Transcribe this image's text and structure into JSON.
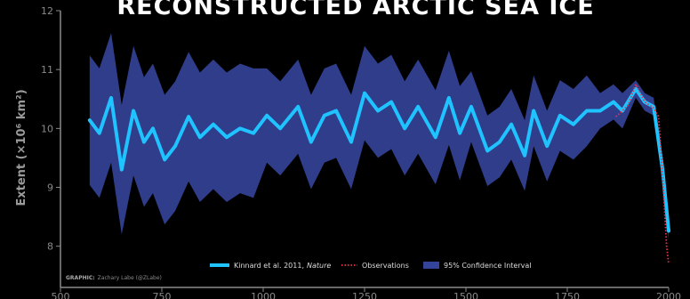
{
  "chart_data": {
    "type": "line",
    "title": "RECONSTRUCTED ARCTIC SEA ICE",
    "y_label": "Extent (×10⁶ km²)",
    "credit_label": "GRAPHIC:",
    "credit": "Zachary Labe (@ZLabe)",
    "x": [
      572,
      596,
      625,
      651,
      680,
      706,
      728,
      757,
      783,
      816,
      844,
      877,
      910,
      943,
      976,
      1009,
      1042,
      1086,
      1118,
      1151,
      1180,
      1217,
      1250,
      1283,
      1316,
      1349,
      1382,
      1425,
      1458,
      1485,
      1513,
      1553,
      1583,
      1612,
      1645,
      1667,
      1700,
      1732,
      1765,
      1798,
      1831,
      1864,
      1886,
      1919,
      1941,
      1963,
      1985,
      2000
    ],
    "series": [
      {
        "name": "Kinnard et al. 2011,",
        "name_emphasis": "Nature",
        "color": "#1fc3ff",
        "values": [
          10.14,
          9.92,
          10.52,
          9.3,
          10.3,
          9.77,
          10.0,
          9.47,
          9.7,
          10.2,
          9.85,
          10.07,
          9.85,
          10.0,
          9.92,
          10.22,
          10.0,
          10.37,
          9.77,
          10.22,
          10.3,
          9.77,
          10.6,
          10.3,
          10.45,
          10.0,
          10.37,
          9.85,
          10.52,
          9.92,
          10.37,
          9.62,
          9.77,
          10.07,
          9.54,
          10.3,
          9.7,
          10.22,
          10.07,
          10.3,
          10.3,
          10.45,
          10.3,
          10.67,
          10.45,
          10.37,
          9.3,
          8.26
        ]
      }
    ],
    "observations": {
      "name": "Observations",
      "color": "#e8334f",
      "x": [
        1870,
        1886,
        1900,
        1919,
        1930,
        1941,
        1963,
        1975,
        1985,
        1995,
        2000
      ],
      "values": [
        10.2,
        10.3,
        10.4,
        10.75,
        10.6,
        10.45,
        10.35,
        10.2,
        9.2,
        8.0,
        7.7
      ]
    },
    "band": {
      "name": "95% Confidence Interval",
      "color": "#34449a",
      "upper": [
        11.24,
        11.02,
        11.62,
        10.4,
        11.4,
        10.87,
        11.1,
        10.57,
        10.8,
        11.3,
        10.95,
        11.17,
        10.95,
        11.1,
        11.02,
        11.02,
        10.8,
        11.17,
        10.57,
        11.02,
        11.1,
        10.57,
        11.4,
        11.1,
        11.25,
        10.8,
        11.17,
        10.65,
        11.32,
        10.72,
        10.97,
        10.22,
        10.37,
        10.67,
        10.14,
        10.9,
        10.3,
        10.82,
        10.67,
        10.9,
        10.6,
        10.75,
        10.6,
        10.82,
        10.6,
        10.52,
        9.45,
        8.41
      ],
      "lower": [
        9.04,
        8.82,
        9.42,
        8.2,
        9.2,
        8.67,
        8.9,
        8.37,
        8.6,
        9.1,
        8.75,
        8.97,
        8.75,
        8.9,
        8.82,
        9.42,
        9.2,
        9.57,
        8.97,
        9.42,
        9.5,
        8.97,
        9.8,
        9.5,
        9.65,
        9.2,
        9.57,
        9.05,
        9.72,
        9.12,
        9.77,
        9.02,
        9.17,
        9.47,
        8.94,
        9.7,
        9.1,
        9.62,
        9.47,
        9.7,
        10.0,
        10.15,
        10.0,
        10.52,
        10.3,
        10.22,
        9.15,
        8.11
      ]
    },
    "xlim": [
      500,
      2000
    ],
    "ylim": [
      7.3,
      12
    ],
    "xticks": [
      500,
      750,
      1000,
      1250,
      1500,
      1750,
      2000
    ],
    "yticks": [
      8,
      9,
      10,
      11,
      12
    ]
  }
}
